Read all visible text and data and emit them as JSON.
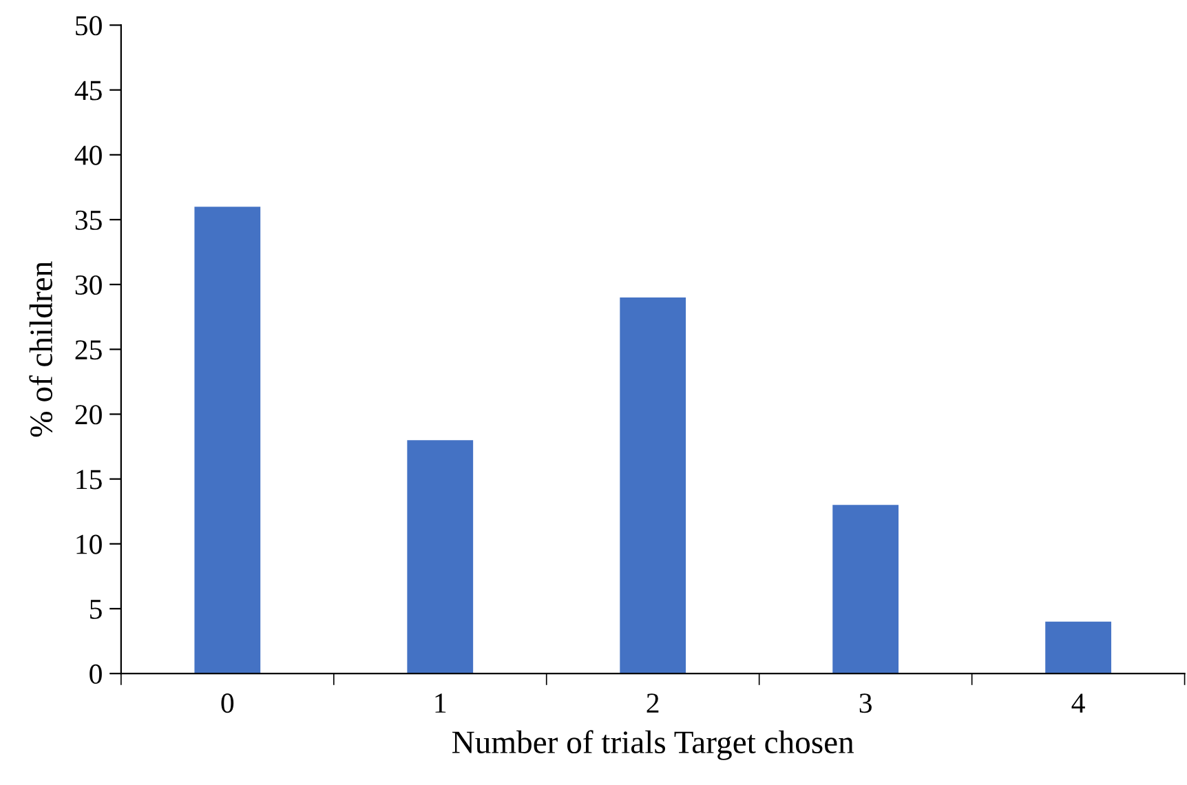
{
  "chart_data": {
    "type": "bar",
    "xlabel": "Number of trials Target chosen",
    "ylabel": "% of children",
    "categories": [
      "0",
      "1",
      "2",
      "3",
      "4"
    ],
    "values": [
      36,
      18,
      29,
      13,
      4
    ],
    "color": "#4472c4",
    "ylim": [
      0,
      50
    ],
    "yticks": [
      0,
      5,
      10,
      15,
      20,
      25,
      30,
      35,
      40,
      45,
      50
    ],
    "grid": false,
    "legend": false
  }
}
